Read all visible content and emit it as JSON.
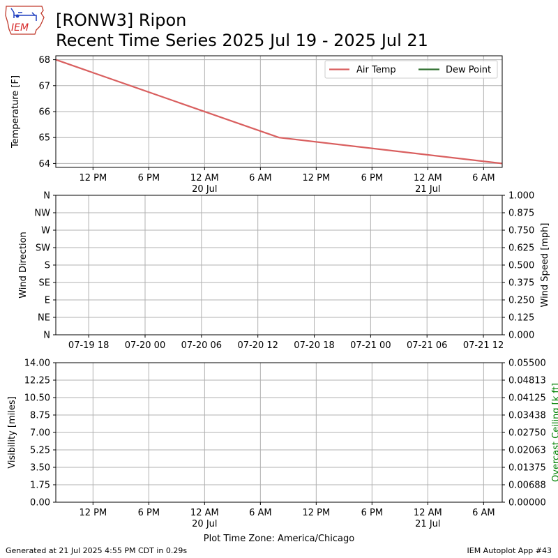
{
  "header": {
    "logo_text": "IEM",
    "title_line1": "[RONW3] Ripon",
    "title_line2": "Recent Time Series 2025 Jul 19 - 2025 Jul 21"
  },
  "footer": {
    "left": "Generated at 21 Jul 2025 4:55 PM CDT in 0.29s",
    "right": "IEM Autoplot App #43",
    "timezone_label": "Plot Time Zone: America/Chicago"
  },
  "colors": {
    "air_temp": "#d95f5f",
    "dew_point": "#2f6f2f",
    "ceiling_label": "#008000",
    "grid": "#b0b0b0"
  },
  "chart_data": [
    {
      "type": "line",
      "ylabel": "Temperature [F]",
      "ylim": [
        63.85,
        68.15
      ],
      "yticks": [
        64,
        65,
        66,
        67,
        68
      ],
      "ytick_labels": [
        "64",
        "65",
        "66",
        "67",
        "68"
      ],
      "xlim": [
        "2025-07-19 08:00",
        "2025-07-21 08:00"
      ],
      "xticks": [
        "2025-07-19 12:00",
        "2025-07-19 18:00",
        "2025-07-20 00:00",
        "2025-07-20 06:00",
        "2025-07-20 12:00",
        "2025-07-20 18:00",
        "2025-07-21 00:00",
        "2025-07-21 06:00"
      ],
      "xtick_labels": [
        "12 PM",
        "6 PM",
        "12 AM",
        "6 AM",
        "12 PM",
        "6 PM",
        "12 AM",
        "6 AM"
      ],
      "xtick_sublabels": [
        "",
        "",
        "20 Jul",
        "",
        "",
        "",
        "21 Jul",
        ""
      ],
      "grid": true,
      "legend": {
        "placement": "top-right",
        "entries": [
          "Air Temp",
          "Dew Point"
        ]
      },
      "series": [
        {
          "name": "Air Temp",
          "x": [
            "2025-07-19 08:00",
            "2025-07-20 08:00",
            "2025-07-21 08:00"
          ],
          "values": [
            68,
            65,
            64
          ]
        },
        {
          "name": "Dew Point",
          "x": [],
          "values": []
        }
      ]
    },
    {
      "type": "line",
      "ylabel": "Wind Direction",
      "y2label": "Wind Speed [mph]",
      "ylim": [
        0,
        360
      ],
      "yticks": [
        0,
        45,
        90,
        135,
        180,
        225,
        270,
        315,
        360
      ],
      "ytick_labels": [
        "N",
        "NE",
        "E",
        "SE",
        "S",
        "SW",
        "W",
        "NW",
        "N"
      ],
      "y2lim": [
        0,
        1
      ],
      "y2ticks": [
        0,
        0.125,
        0.25,
        0.375,
        0.5,
        0.625,
        0.75,
        0.875,
        1.0
      ],
      "y2tick_labels": [
        "0.000",
        "0.125",
        "0.250",
        "0.375",
        "0.500",
        "0.625",
        "0.750",
        "0.875",
        "1.000"
      ],
      "xlim": [
        "2025-07-19 14:30",
        "2025-07-21 14:00"
      ],
      "xticks": [
        "2025-07-19 18:00",
        "2025-07-20 00:00",
        "2025-07-20 06:00",
        "2025-07-20 12:00",
        "2025-07-20 18:00",
        "2025-07-21 00:00",
        "2025-07-21 06:00",
        "2025-07-21 12:00"
      ],
      "xtick_labels": [
        "07-19 18",
        "07-20 00",
        "07-20 06",
        "07-20 12",
        "07-20 18",
        "07-21 00",
        "07-21 06",
        "07-21 12"
      ],
      "grid": true,
      "series": []
    },
    {
      "type": "line",
      "ylabel": "Visibility [miles]",
      "y2label": "Overcast Ceiling [k ft]",
      "ylim": [
        0,
        14
      ],
      "yticks": [
        0,
        1.75,
        3.5,
        5.25,
        7,
        8.75,
        10.5,
        12.25,
        14
      ],
      "ytick_labels": [
        "0.00",
        "1.75",
        "3.50",
        "5.25",
        "7.00",
        "8.75",
        "10.50",
        "12.25",
        "14.00"
      ],
      "y2lim": [
        0,
        0.055
      ],
      "y2ticks": [
        0,
        0.006875,
        0.01375,
        0.020625,
        0.0275,
        0.034375,
        0.04125,
        0.048125,
        0.055
      ],
      "y2tick_labels": [
        "0.00000",
        "0.00688",
        "0.01375",
        "0.02063",
        "0.02750",
        "0.03438",
        "0.04125",
        "0.04813",
        "0.05500"
      ],
      "xlim": [
        "2025-07-19 08:00",
        "2025-07-21 08:00"
      ],
      "xticks": [
        "2025-07-19 12:00",
        "2025-07-19 18:00",
        "2025-07-20 00:00",
        "2025-07-20 06:00",
        "2025-07-20 12:00",
        "2025-07-20 18:00",
        "2025-07-21 00:00",
        "2025-07-21 06:00"
      ],
      "xtick_labels": [
        "12 PM",
        "6 PM",
        "12 AM",
        "6 AM",
        "12 PM",
        "6 PM",
        "12 AM",
        "6 AM"
      ],
      "xtick_sublabels": [
        "",
        "",
        "20 Jul",
        "",
        "",
        "",
        "21 Jul",
        ""
      ],
      "grid": true,
      "series": []
    }
  ]
}
